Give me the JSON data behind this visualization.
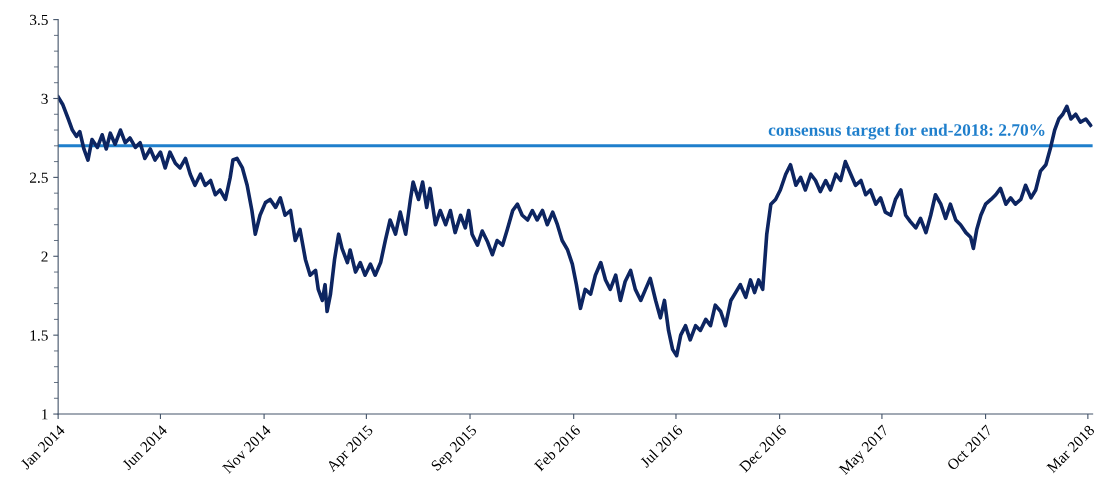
{
  "chart_data": {
    "type": "line",
    "x": [
      "2014-01-01",
      "2014-01-08",
      "2014-01-16",
      "2014-01-22",
      "2014-01-28",
      "2014-02-02",
      "2014-02-08",
      "2014-02-14",
      "2014-02-20",
      "2014-02-28",
      "2014-03-07",
      "2014-03-13",
      "2014-03-19",
      "2014-03-26",
      "2014-04-03",
      "2014-04-10",
      "2014-04-17",
      "2014-04-25",
      "2014-05-02",
      "2014-05-09",
      "2014-05-17",
      "2014-05-24",
      "2014-06-01",
      "2014-06-08",
      "2014-06-15",
      "2014-06-23",
      "2014-06-30",
      "2014-07-08",
      "2014-07-15",
      "2014-07-22",
      "2014-07-30",
      "2014-08-06",
      "2014-08-14",
      "2014-08-21",
      "2014-08-28",
      "2014-09-05",
      "2014-09-12",
      "2014-09-16",
      "2014-09-22",
      "2014-09-30",
      "2014-10-07",
      "2014-10-14",
      "2014-10-19",
      "2014-10-26",
      "2014-11-03",
      "2014-11-10",
      "2014-11-18",
      "2014-11-25",
      "2014-12-02",
      "2014-12-10",
      "2014-12-17",
      "2014-12-24",
      "2015-01-01",
      "2015-01-08",
      "2015-01-16",
      "2015-01-20",
      "2015-01-26",
      "2015-01-30",
      "2015-02-02",
      "2015-02-07",
      "2015-02-13",
      "2015-02-19",
      "2015-02-24",
      "2015-03-04",
      "2015-03-08",
      "2015-03-16",
      "2015-03-23",
      "2015-03-30",
      "2015-04-07",
      "2015-04-14",
      "2015-04-22",
      "2015-04-29",
      "2015-05-06",
      "2015-05-14",
      "2015-05-21",
      "2015-05-29",
      "2015-06-05",
      "2015-06-09",
      "2015-06-17",
      "2015-06-23",
      "2015-06-29",
      "2015-07-04",
      "2015-07-12",
      "2015-07-19",
      "2015-07-27",
      "2015-08-03",
      "2015-08-10",
      "2015-08-18",
      "2015-08-25",
      "2015-08-30",
      "2015-09-04",
      "2015-09-12",
      "2015-09-19",
      "2015-09-27",
      "2015-10-04",
      "2015-10-11",
      "2015-10-19",
      "2015-10-26",
      "2015-11-03",
      "2015-11-10",
      "2015-11-17",
      "2015-11-25",
      "2015-12-02",
      "2015-12-09",
      "2015-12-17",
      "2015-12-24",
      "2016-01-01",
      "2016-01-08",
      "2016-01-15",
      "2016-01-23",
      "2016-01-30",
      "2016-02-05",
      "2016-02-11",
      "2016-02-18",
      "2016-02-26",
      "2016-03-04",
      "2016-03-12",
      "2016-03-19",
      "2016-03-26",
      "2016-04-03",
      "2016-04-10",
      "2016-04-17",
      "2016-04-25",
      "2016-05-02",
      "2016-05-10",
      "2016-05-17",
      "2016-05-24",
      "2016-06-01",
      "2016-06-08",
      "2016-06-14",
      "2016-06-20",
      "2016-06-26",
      "2016-07-02",
      "2016-07-08",
      "2016-07-15",
      "2016-07-22",
      "2016-07-30",
      "2016-08-06",
      "2016-08-14",
      "2016-08-21",
      "2016-08-28",
      "2016-09-05",
      "2016-09-12",
      "2016-09-20",
      "2016-09-27",
      "2016-10-04",
      "2016-10-12",
      "2016-10-19",
      "2016-10-25",
      "2016-10-31",
      "2016-11-06",
      "2016-11-12",
      "2016-11-18",
      "2016-11-25",
      "2016-12-02",
      "2016-12-10",
      "2016-12-17",
      "2016-12-25",
      "2017-01-01",
      "2017-01-08",
      "2017-01-16",
      "2017-01-23",
      "2017-01-30",
      "2017-02-07",
      "2017-02-14",
      "2017-02-22",
      "2017-03-01",
      "2017-03-08",
      "2017-03-16",
      "2017-03-23",
      "2017-03-31",
      "2017-04-07",
      "2017-04-14",
      "2017-04-22",
      "2017-04-29",
      "2017-05-06",
      "2017-05-14",
      "2017-05-21",
      "2017-05-29",
      "2017-06-05",
      "2017-06-12",
      "2017-06-20",
      "2017-06-27",
      "2017-07-05",
      "2017-07-12",
      "2017-07-19",
      "2017-07-27",
      "2017-08-03",
      "2017-08-10",
      "2017-08-18",
      "2017-08-25",
      "2017-09-02",
      "2017-09-09",
      "2017-09-13",
      "2017-09-18",
      "2017-09-24",
      "2017-10-01",
      "2017-10-09",
      "2017-10-16",
      "2017-10-23",
      "2017-10-31",
      "2017-11-07",
      "2017-11-14",
      "2017-11-22",
      "2017-11-29",
      "2017-12-07",
      "2017-12-14",
      "2017-12-21",
      "2017-12-29",
      "2018-01-05",
      "2018-01-11",
      "2018-01-17",
      "2018-01-23",
      "2018-01-29",
      "2018-02-04",
      "2018-02-11",
      "2018-02-18",
      "2018-02-26",
      "2018-03-05"
    ],
    "series": [
      {
        "color": "#0d2561",
        "values": [
          3.01,
          2.96,
          2.87,
          2.8,
          2.76,
          2.79,
          2.68,
          2.61,
          2.74,
          2.69,
          2.77,
          2.68,
          2.78,
          2.71,
          2.8,
          2.72,
          2.75,
          2.69,
          2.72,
          2.62,
          2.68,
          2.61,
          2.66,
          2.56,
          2.66,
          2.59,
          2.56,
          2.62,
          2.52,
          2.45,
          2.52,
          2.45,
          2.48,
          2.39,
          2.42,
          2.36,
          2.5,
          2.61,
          2.62,
          2.56,
          2.45,
          2.29,
          2.14,
          2.26,
          2.34,
          2.36,
          2.31,
          2.37,
          2.26,
          2.29,
          2.1,
          2.17,
          1.98,
          1.88,
          1.91,
          1.79,
          1.72,
          1.82,
          1.65,
          1.76,
          1.98,
          2.14,
          2.05,
          1.96,
          2.04,
          1.9,
          1.96,
          1.88,
          1.95,
          1.88,
          1.96,
          2.1,
          2.23,
          2.14,
          2.28,
          2.14,
          2.36,
          2.47,
          2.36,
          2.47,
          2.31,
          2.43,
          2.2,
          2.29,
          2.2,
          2.29,
          2.15,
          2.26,
          2.18,
          2.29,
          2.14,
          2.07,
          2.16,
          2.09,
          2.01,
          2.1,
          2.07,
          2.17,
          2.29,
          2.33,
          2.26,
          2.23,
          2.29,
          2.23,
          2.29,
          2.2,
          2.28,
          2.2,
          2.1,
          2.04,
          1.95,
          1.82,
          1.67,
          1.79,
          1.76,
          1.88,
          1.96,
          1.85,
          1.79,
          1.88,
          1.72,
          1.84,
          1.91,
          1.79,
          1.72,
          1.79,
          1.86,
          1.72,
          1.61,
          1.72,
          1.53,
          1.41,
          1.37,
          1.5,
          1.56,
          1.47,
          1.56,
          1.53,
          1.6,
          1.56,
          1.69,
          1.65,
          1.56,
          1.72,
          1.77,
          1.82,
          1.74,
          1.85,
          1.77,
          1.85,
          1.79,
          2.14,
          2.33,
          2.36,
          2.42,
          2.52,
          2.58,
          2.45,
          2.5,
          2.42,
          2.52,
          2.48,
          2.41,
          2.48,
          2.42,
          2.52,
          2.48,
          2.6,
          2.52,
          2.45,
          2.48,
          2.39,
          2.42,
          2.33,
          2.37,
          2.28,
          2.26,
          2.36,
          2.42,
          2.26,
          2.22,
          2.18,
          2.24,
          2.15,
          2.26,
          2.39,
          2.33,
          2.24,
          2.33,
          2.23,
          2.2,
          2.15,
          2.12,
          2.05,
          2.17,
          2.26,
          2.33,
          2.36,
          2.39,
          2.43,
          2.33,
          2.37,
          2.33,
          2.36,
          2.45,
          2.37,
          2.42,
          2.54,
          2.58,
          2.69,
          2.8,
          2.87,
          2.9,
          2.95,
          2.87,
          2.9,
          2.85,
          2.87,
          2.83
        ]
      }
    ],
    "xlim": [
      "2014-01-01",
      "2018-03-08"
    ],
    "xticks": [
      {
        "value": "2014-01-01",
        "label": "Jan 2014"
      },
      {
        "value": "2014-06-01",
        "label": "Jun 2014"
      },
      {
        "value": "2014-11-01",
        "label": "Nov 2014"
      },
      {
        "value": "2015-04-01",
        "label": "Apr 2015"
      },
      {
        "value": "2015-09-01",
        "label": "Sep 2015"
      },
      {
        "value": "2016-02-01",
        "label": "Feb 2016"
      },
      {
        "value": "2016-07-01",
        "label": "Jul 2016"
      },
      {
        "value": "2016-12-01",
        "label": "Dec 2016"
      },
      {
        "value": "2017-05-01",
        "label": "May 2017"
      },
      {
        "value": "2017-10-01",
        "label": "Oct 2017"
      },
      {
        "value": "2018-03-01",
        "label": "Mar 2018"
      }
    ],
    "ylim": [
      1,
      3.5
    ],
    "yticks": [
      1,
      1.5,
      2,
      2.5,
      3,
      3.5
    ],
    "ref_lines": [
      {
        "axis": "y",
        "value": 2.7,
        "label": "consensus target for end-2018: 2.70%",
        "color": "#1f7fcc"
      }
    ],
    "grid": false,
    "legend": false,
    "marker": "none",
    "line_style": "solid"
  }
}
